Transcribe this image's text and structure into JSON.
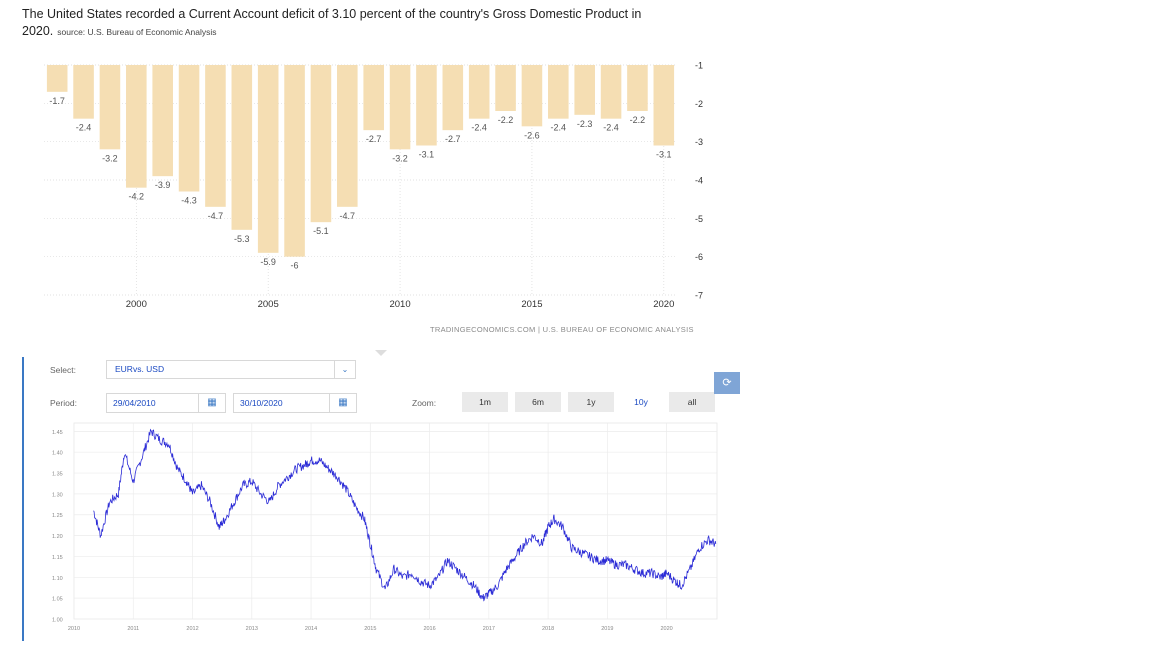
{
  "headline": {
    "text": "The United States recorded a Current Account deficit of 3.10 percent of the country's Gross Domestic Product in 2020.",
    "source": "source: U.S. Bureau of Economic Analysis"
  },
  "attribution": "TRADINGECONOMICS.COM  |  U.S. BUREAU OF ECONOMIC ANALYSIS",
  "colors": {
    "bar": "#f5deb3",
    "line": "#2b2bd6",
    "accent": "#3a78c4",
    "grid": "#d9d9d9"
  },
  "chart_data": [
    {
      "type": "bar",
      "x": [
        1997,
        1998,
        1999,
        2000,
        2001,
        2002,
        2003,
        2004,
        2005,
        2006,
        2007,
        2008,
        2009,
        2010,
        2011,
        2012,
        2013,
        2014,
        2015,
        2016,
        2017,
        2018,
        2019,
        2020
      ],
      "values": [
        -1.7,
        -2.4,
        -3.2,
        -4.2,
        -3.9,
        -4.3,
        -4.7,
        -5.3,
        -5.9,
        -6,
        -5.1,
        -4.7,
        -2.7,
        -3.2,
        -3.1,
        -2.7,
        -2.4,
        -2.2,
        -2.6,
        -2.4,
        -2.3,
        -2.4,
        -2.2,
        -3.1
      ],
      "data_labels": [
        "-1.7",
        "-2.4",
        "-3.2",
        "-4.2",
        "-3.9",
        "-4.3",
        "-4.7",
        "-5.3",
        "-5.9",
        "-6",
        "-5.1",
        "-4.7",
        "-2.7",
        "-3.2",
        "-3.1",
        "-2.7",
        "-2.4",
        "-2.2",
        "-2.6",
        "-2.4",
        "-2.3",
        "-2.4",
        "-2.2",
        "-3.1"
      ],
      "xticks": [
        2000,
        2005,
        2010,
        2015,
        2020
      ],
      "xtick_labels": [
        "2000",
        "2005",
        "2010",
        "2015",
        "2020"
      ],
      "yticks": [
        -1,
        -2,
        -3,
        -4,
        -5,
        -6,
        -7
      ],
      "ytick_labels": [
        "-1",
        "-2",
        "-3",
        "-4",
        "-5",
        "-6",
        "-7"
      ],
      "ylim": [
        -7,
        -1
      ],
      "y_axis_side": "right",
      "grid": true
    },
    {
      "type": "line",
      "x_range": [
        "2010-04-29",
        "2020-10-30"
      ],
      "xtick_labels": [
        "2010",
        "2011",
        "2012",
        "2013",
        "2014",
        "2015",
        "2016",
        "2017",
        "2018",
        "2019",
        "2020"
      ],
      "ytick_labels": [
        "1.00",
        "1.05",
        "1.10",
        "1.15",
        "1.20",
        "1.25",
        "1.30",
        "1.35",
        "1.40",
        "1.45"
      ],
      "ylim": [
        1.0,
        1.47
      ],
      "grid": true,
      "series": [
        {
          "x": [
            2010.33,
            2010.45,
            2010.6,
            2010.75,
            2010.85,
            2011.0,
            2011.15,
            2011.3,
            2011.45,
            2011.6,
            2011.75,
            2011.9,
            2012.0,
            2012.15,
            2012.3,
            2012.45,
            2012.55,
            2012.7,
            2012.85,
            2013.0,
            2013.15,
            2013.3,
            2013.45,
            2013.6,
            2013.75,
            2013.9,
            2014.0,
            2014.15,
            2014.3,
            2014.45,
            2014.6,
            2014.75,
            2014.9,
            2015.0,
            2015.1,
            2015.25,
            2015.4,
            2015.55,
            2015.7,
            2015.85,
            2016.0,
            2016.15,
            2016.3,
            2016.45,
            2016.6,
            2016.75,
            2016.9,
            2017.0,
            2017.15,
            2017.3,
            2017.45,
            2017.6,
            2017.75,
            2017.9,
            2018.0,
            2018.1,
            2018.25,
            2018.4,
            2018.55,
            2018.7,
            2018.85,
            2019.0,
            2019.15,
            2019.3,
            2019.45,
            2019.6,
            2019.75,
            2019.9,
            2020.0,
            2020.15,
            2020.25,
            2020.4,
            2020.55,
            2020.7,
            2020.83
          ],
          "y": [
            1.26,
            1.2,
            1.28,
            1.3,
            1.4,
            1.33,
            1.39,
            1.45,
            1.43,
            1.42,
            1.36,
            1.33,
            1.3,
            1.32,
            1.28,
            1.22,
            1.24,
            1.28,
            1.32,
            1.33,
            1.3,
            1.28,
            1.32,
            1.34,
            1.36,
            1.37,
            1.38,
            1.38,
            1.36,
            1.34,
            1.31,
            1.27,
            1.24,
            1.18,
            1.12,
            1.07,
            1.12,
            1.1,
            1.11,
            1.09,
            1.08,
            1.1,
            1.14,
            1.12,
            1.1,
            1.08,
            1.05,
            1.06,
            1.08,
            1.12,
            1.15,
            1.18,
            1.2,
            1.18,
            1.22,
            1.24,
            1.22,
            1.17,
            1.16,
            1.15,
            1.14,
            1.14,
            1.13,
            1.13,
            1.12,
            1.11,
            1.11,
            1.1,
            1.11,
            1.09,
            1.08,
            1.12,
            1.17,
            1.19,
            1.18
          ]
        }
      ]
    }
  ],
  "controls": {
    "select_label": "Select:",
    "select_value": "EURvs. USD",
    "period_label": "Period:",
    "date_from": "29/04/2010",
    "date_to": "30/10/2020",
    "zoom_label": "Zoom:",
    "zoom_buttons": [
      "1m",
      "6m",
      "1y",
      "10y",
      "all"
    ],
    "zoom_active": "10y"
  },
  "icons": {
    "select": "chevron-down-icon",
    "date": "calendar-icon",
    "share": "share-icon"
  }
}
